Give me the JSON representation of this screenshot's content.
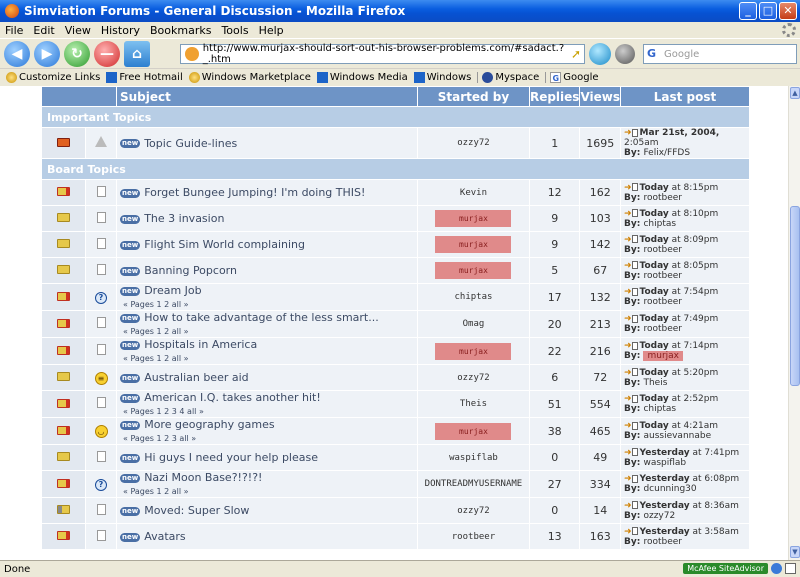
{
  "window": {
    "title": "Simviation Forums - General Discussion - Mozilla Firefox"
  },
  "menu": [
    "File",
    "Edit",
    "View",
    "History",
    "Bookmarks",
    "Tools",
    "Help"
  ],
  "nav": {
    "url": "http://www.murjax-should-sort-out-his-browser-problems.com/#sadact.?_.htm",
    "search_placeholder": "Google"
  },
  "bookmarks": [
    {
      "label": "Customize Links",
      "icon": "bulb"
    },
    {
      "label": "Free Hotmail",
      "icon": "msn"
    },
    {
      "label": "Windows Marketplace",
      "icon": "bulb"
    },
    {
      "label": "Windows Media",
      "icon": "msn"
    },
    {
      "label": "Windows",
      "icon": "msn"
    },
    {
      "label": "Myspace",
      "icon": "mys"
    },
    {
      "label": "Google",
      "icon": "goo"
    }
  ],
  "table": {
    "headers": {
      "subject": "Subject",
      "started_by": "Started by",
      "replies": "Replies",
      "views": "Views",
      "last_post": "Last post"
    },
    "sections": {
      "important": "Important Topics",
      "board": "Board Topics"
    },
    "important_rows": [
      {
        "folder": "imp",
        "ticon": "warn",
        "subject": "Topic Guide-lines",
        "pages": "",
        "starter": "ozzy72",
        "redacted": false,
        "replies": "1",
        "views": "1695",
        "lp_day": "Mar 21st, 2004,",
        "lp_time": "2:05am",
        "lp_by": "Felix/FFDS",
        "lp_red": false
      }
    ],
    "board_rows": [
      {
        "folder": "hot",
        "ticon": "doc",
        "subject": "Forget Bungee Jumping!  I'm doing THIS!",
        "pages": "",
        "starter": "Kevin",
        "redacted": false,
        "replies": "12",
        "views": "162",
        "lp_day": "Today",
        "lp_time": "at 8:15pm",
        "lp_by": "rootbeer",
        "lp_red": false
      },
      {
        "folder": "norm",
        "ticon": "doc",
        "subject": "The 3 invasion",
        "pages": "",
        "starter": "murjax",
        "redacted": true,
        "replies": "9",
        "views": "103",
        "lp_day": "Today",
        "lp_time": "at 8:10pm",
        "lp_by": "chiptas",
        "lp_red": false
      },
      {
        "folder": "norm",
        "ticon": "doc",
        "subject": "Flight Sim World complaining",
        "pages": "",
        "starter": "murjax",
        "redacted": true,
        "replies": "9",
        "views": "142",
        "lp_day": "Today",
        "lp_time": "at 8:09pm",
        "lp_by": "rootbeer",
        "lp_red": false
      },
      {
        "folder": "norm",
        "ticon": "doc",
        "subject": "Banning Popcorn",
        "pages": "",
        "starter": "murjax",
        "redacted": true,
        "replies": "5",
        "views": "67",
        "lp_day": "Today",
        "lp_time": "at 8:05pm",
        "lp_by": "rootbeer",
        "lp_red": false
      },
      {
        "folder": "hot",
        "ticon": "qmark",
        "subject": "Dream Job",
        "pages": "« Pages 1 2 all »",
        "starter": "chiptas",
        "redacted": false,
        "replies": "17",
        "views": "132",
        "lp_day": "Today",
        "lp_time": "at 7:54pm",
        "lp_by": "rootbeer",
        "lp_red": false
      },
      {
        "folder": "hot",
        "ticon": "doc",
        "subject": "How to take advantage of the less smart...",
        "pages": "« Pages 1 2 all »",
        "starter": "Omag",
        "redacted": false,
        "replies": "20",
        "views": "213",
        "lp_day": "Today",
        "lp_time": "at 7:49pm",
        "lp_by": "rootbeer",
        "lp_red": false
      },
      {
        "folder": "hot",
        "ticon": "doc",
        "subject": "Hospitals in America",
        "pages": "« Pages 1 2 all »",
        "starter": "murjax",
        "redacted": true,
        "replies": "22",
        "views": "216",
        "lp_day": "Today",
        "lp_time": "at 7:14pm",
        "lp_by": "murjax",
        "lp_red": true
      },
      {
        "folder": "norm",
        "ticon": "smile",
        "subject": "Australian beer aid",
        "pages": "",
        "starter": "ozzy72",
        "redacted": false,
        "replies": "6",
        "views": "72",
        "lp_day": "Today",
        "lp_time": "at 5:20pm",
        "lp_by": "Theis",
        "lp_red": false
      },
      {
        "folder": "hotr",
        "ticon": "doc",
        "subject": "American I.Q. takes another hit!",
        "pages": "« Pages 1 2 3 4 all »",
        "starter": "Theis",
        "redacted": false,
        "replies": "51",
        "views": "554",
        "lp_day": "Today",
        "lp_time": "at 2:52pm",
        "lp_by": "chiptas",
        "lp_red": false
      },
      {
        "folder": "hotr",
        "ticon": "smile2",
        "subject": "More geography games",
        "pages": "« Pages 1 2 3 all »",
        "starter": "murjax",
        "redacted": true,
        "replies": "38",
        "views": "465",
        "lp_day": "Today",
        "lp_time": "at 4:21am",
        "lp_by": "aussievannabe",
        "lp_red": false
      },
      {
        "folder": "norm",
        "ticon": "doc",
        "subject": "Hi guys I need your help please",
        "pages": "",
        "starter": "waspiflab",
        "redacted": false,
        "replies": "0",
        "views": "49",
        "lp_day": "Yesterday",
        "lp_time": "at 7:41pm",
        "lp_by": "waspiflab",
        "lp_red": false
      },
      {
        "folder": "hotr",
        "ticon": "qmark",
        "subject": "Nazi Moon Base?!?!?!",
        "pages": "« Pages 1 2 all »",
        "starter": "DONTREADMYUSERNAME",
        "redacted": false,
        "replies": "27",
        "views": "334",
        "lp_day": "Yesterday",
        "lp_time": "at 6:08pm",
        "lp_by": "dcunning30",
        "lp_red": false
      },
      {
        "folder": "lock",
        "ticon": "doc",
        "subject": "Moved: Super Slow",
        "pages": "",
        "starter": "ozzy72",
        "redacted": false,
        "replies": "0",
        "views": "14",
        "lp_day": "Yesterday",
        "lp_time": "at 8:36am",
        "lp_by": "ozzy72",
        "lp_red": false
      },
      {
        "folder": "hot",
        "ticon": "doc",
        "subject": "Avatars",
        "pages": "",
        "starter": "rootbeer",
        "redacted": false,
        "replies": "13",
        "views": "163",
        "lp_day": "Yesterday",
        "lp_time": "at 3:58am",
        "lp_by": "rootbeer",
        "lp_red": false
      }
    ]
  },
  "status": {
    "text": "Done",
    "mcafee": "McAfee SiteAdvisor"
  }
}
